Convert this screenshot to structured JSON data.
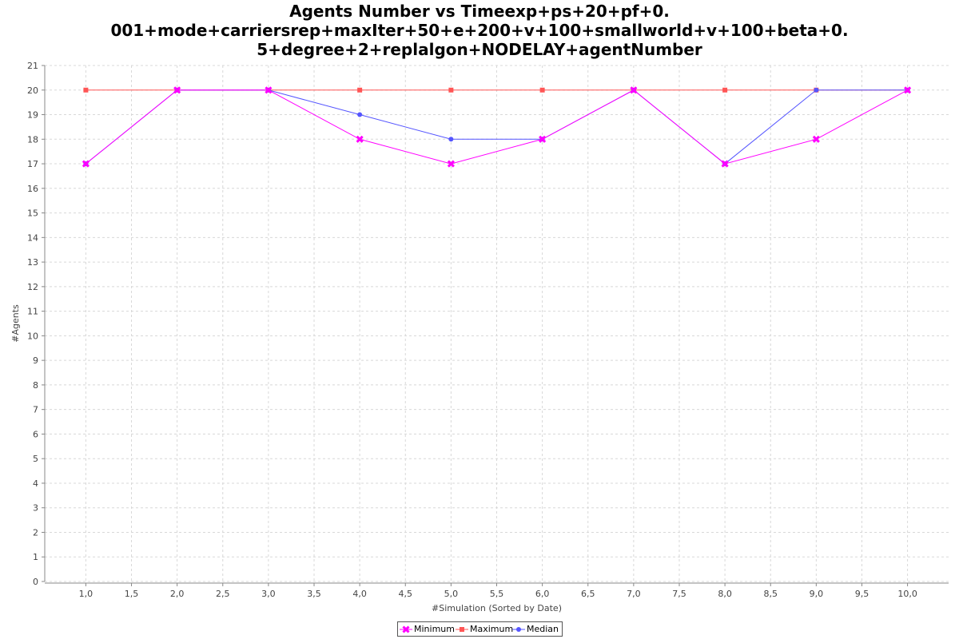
{
  "chart_data": {
    "type": "line",
    "title_lines": [
      "Agents Number vs Timeexp+ps+20+pf+0.",
      "001+mode+carriersrep+maxIter+50+e+200+v+100+smallworld+v+100+beta+0.",
      "5+degree+2+replalgon+NODELAY+agentNumber"
    ],
    "xlabel": "#Simulation (Sorted by Date)",
    "ylabel": "#Agents",
    "xlim": [
      0.55,
      10.45
    ],
    "ylim": [
      0,
      21
    ],
    "x_ticks": [
      "1,0",
      "1,5",
      "2,0",
      "2,5",
      "3,0",
      "3,5",
      "4,0",
      "4,5",
      "5,0",
      "5,5",
      "6,0",
      "6,5",
      "7,0",
      "7,5",
      "8,0",
      "8,5",
      "9,0",
      "9,5",
      "10,0"
    ],
    "y_ticks": [
      "0",
      "1",
      "2",
      "3",
      "4",
      "5",
      "6",
      "7",
      "8",
      "9",
      "10",
      "11",
      "12",
      "13",
      "14",
      "15",
      "16",
      "17",
      "18",
      "19",
      "20",
      "21"
    ],
    "grid": true,
    "legend_position": "bottom",
    "x": [
      1,
      2,
      3,
      4,
      5,
      6,
      7,
      8,
      9,
      10
    ],
    "series": [
      {
        "name": "Minimum",
        "values": [
          17,
          20,
          20,
          18,
          17,
          18,
          20,
          17,
          18,
          20
        ],
        "color": "#ff00ff",
        "marker": "x"
      },
      {
        "name": "Maximum",
        "values": [
          20,
          20,
          20,
          20,
          20,
          20,
          20,
          20,
          20,
          20
        ],
        "color": "#ff5555",
        "marker": "square"
      },
      {
        "name": "Median",
        "values": [
          17,
          20,
          20,
          19,
          18,
          18,
          20,
          17,
          20,
          20
        ],
        "color": "#5555ff",
        "marker": "circle"
      }
    ]
  }
}
